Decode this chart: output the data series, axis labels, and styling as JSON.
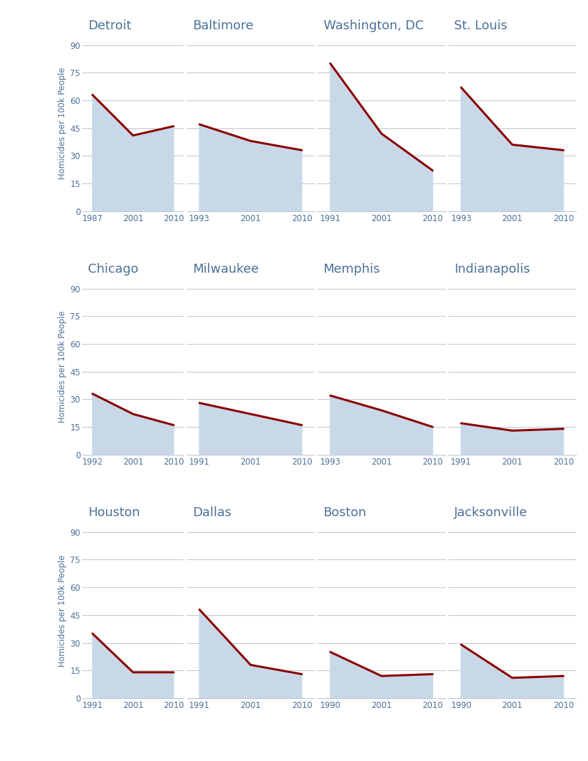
{
  "cities": [
    {
      "name": "Detroit",
      "years": [
        1987,
        2001,
        2010
      ],
      "values": [
        63,
        41,
        46
      ]
    },
    {
      "name": "Baltimore",
      "years": [
        1993,
        2001,
        2010
      ],
      "values": [
        47,
        38,
        33
      ]
    },
    {
      "name": "Washington, DC",
      "years": [
        1991,
        2001,
        2010
      ],
      "values": [
        80,
        42,
        22
      ]
    },
    {
      "name": "St. Louis",
      "years": [
        1993,
        2001,
        2010
      ],
      "values": [
        67,
        36,
        33
      ]
    },
    {
      "name": "Chicago",
      "years": [
        1992,
        2001,
        2010
      ],
      "values": [
        33,
        22,
        16
      ]
    },
    {
      "name": "Milwaukee",
      "years": [
        1991,
        2001,
        2010
      ],
      "values": [
        28,
        22,
        16
      ]
    },
    {
      "name": "Memphis",
      "years": [
        1993,
        2001,
        2010
      ],
      "values": [
        32,
        24,
        15
      ]
    },
    {
      "name": "Indianapolis",
      "years": [
        1991,
        2001,
        2010
      ],
      "values": [
        17,
        13,
        14
      ]
    },
    {
      "name": "Houston",
      "years": [
        1991,
        2001,
        2010
      ],
      "values": [
        35,
        14,
        14
      ]
    },
    {
      "name": "Dallas",
      "years": [
        1991,
        2001,
        2010
      ],
      "values": [
        48,
        18,
        13
      ]
    },
    {
      "name": "Boston",
      "years": [
        1990,
        2001,
        2010
      ],
      "values": [
        25,
        12,
        13
      ]
    },
    {
      "name": "Jacksonville",
      "years": [
        1990,
        2001,
        2010
      ],
      "values": [
        29,
        11,
        12
      ]
    }
  ],
  "ylim": [
    0,
    95
  ],
  "yticks": [
    0,
    15,
    30,
    45,
    60,
    75,
    90
  ],
  "fill_color": "#c8d8e8",
  "line_color": "#8b0000",
  "title_color": "#4a7098",
  "ylabel": "Homicides per 100k People",
  "ylabel_color": "#4a7098",
  "tick_color": "#4a7098",
  "grid_color": "#b8c4d0",
  "bg_color": "#ffffff",
  "line_width": 2.2,
  "title_fontsize": 13,
  "tick_fontsize": 8.5,
  "ylabel_fontsize": 8.5
}
